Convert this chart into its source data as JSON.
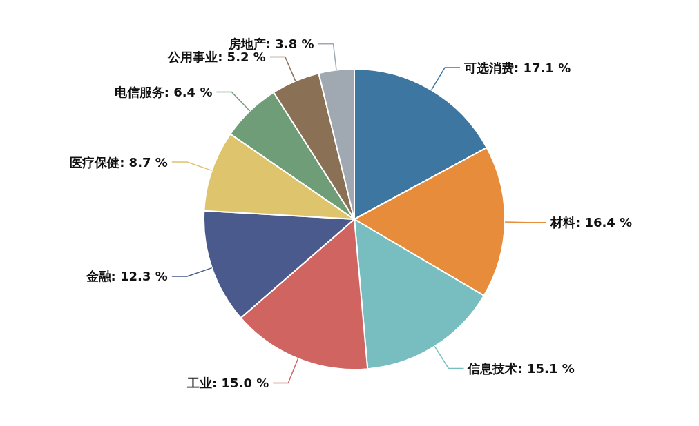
{
  "chart_data": {
    "type": "pie",
    "categories": [
      "可选消费",
      "材料",
      "信息技术",
      "工业",
      "金融",
      "医疗保健",
      "电信服务",
      "公用事业",
      "房地产"
    ],
    "values": [
      17.1,
      16.4,
      15.1,
      15.0,
      12.3,
      8.7,
      6.4,
      5.2,
      3.8
    ],
    "value_labels": [
      "17.1 %",
      "16.4 %",
      "15.1 %",
      "15.0 %",
      "12.3 %",
      "8.7 %",
      "6.4 %",
      "5.2 %",
      "3.8 %"
    ],
    "colors": [
      "#3d76a0",
      "#e78c3a",
      "#78bdc0",
      "#d06461",
      "#4b5a8c",
      "#dec46c",
      "#6f9d77",
      "#8a7055",
      "#a0a8b2"
    ],
    "legend": false
  }
}
